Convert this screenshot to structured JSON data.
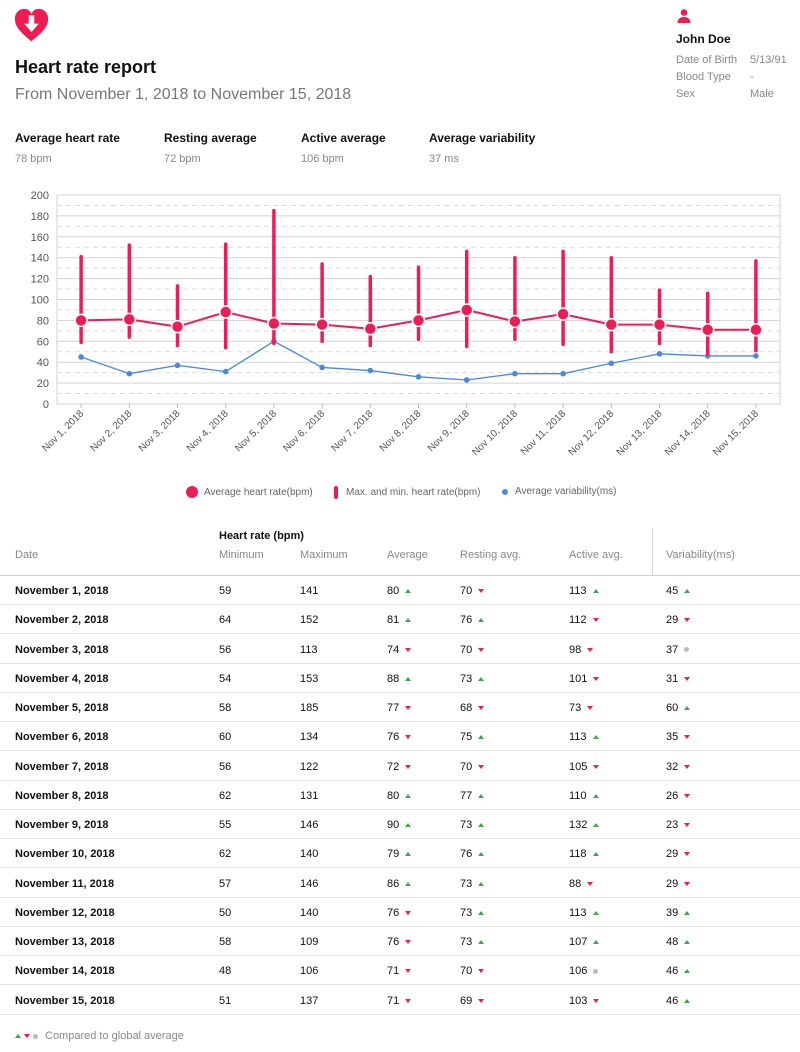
{
  "header": {
    "title": "Heart rate report",
    "range": "From November 1, 2018 to November 15, 2018",
    "logo_icon": "heart-download-icon",
    "accent_color": "#ee1c55"
  },
  "profile": {
    "icon": "person-icon",
    "name": "John Doe",
    "fields": [
      {
        "label": "Date of Birth",
        "value": "5/13/91"
      },
      {
        "label": "Blood Type",
        "value": "-"
      },
      {
        "label": "Sex",
        "value": "Male"
      }
    ]
  },
  "summary": [
    {
      "label": "Average heart rate",
      "value": "78 bpm"
    },
    {
      "label": "Resting average",
      "value": "72 bpm"
    },
    {
      "label": "Active average",
      "value": "106 bpm"
    },
    {
      "label": "Average variability",
      "value": "37 ms"
    }
  ],
  "chart_data": {
    "type": "line",
    "categories": [
      "Nov 1, 2018",
      "Nov 2, 2018",
      "Nov 3, 2018",
      "Nov 4, 2018",
      "Nov 5, 2018",
      "Nov 6, 2018",
      "Nov 7, 2018",
      "Nov 8, 2018",
      "Nov 9, 2018",
      "Nov 10, 2018",
      "Nov 11, 2018",
      "Nov 12, 2018",
      "Nov 13, 2018",
      "Nov 14, 2018",
      "Nov 15, 2018"
    ],
    "yticks": [
      "0",
      "20",
      "40",
      "60",
      "80",
      "100",
      "120",
      "140",
      "160",
      "180",
      "200"
    ],
    "ylim": [
      0,
      200
    ],
    "grid": true,
    "legend_position": "bottom",
    "series": [
      {
        "name": "Average heart rate(bpm)",
        "kind": "line-with-markers",
        "color": "#ee1c55",
        "values": [
          80,
          81,
          74,
          88,
          77,
          76,
          72,
          80,
          90,
          79,
          86,
          76,
          76,
          71,
          71
        ]
      },
      {
        "name": "Max. and min. heart rate(bpm)",
        "kind": "range-bar",
        "color": "#ee1c55",
        "min": [
          59,
          64,
          56,
          54,
          58,
          60,
          56,
          62,
          55,
          62,
          57,
          50,
          58,
          48,
          51
        ],
        "max": [
          141,
          152,
          113,
          153,
          185,
          134,
          122,
          131,
          146,
          140,
          146,
          140,
          109,
          106,
          137
        ]
      },
      {
        "name": "Average variability(ms)",
        "kind": "line-with-small-markers",
        "color": "#4a8ad8",
        "values": [
          45,
          29,
          37,
          31,
          60,
          35,
          32,
          26,
          23,
          29,
          29,
          39,
          48,
          46,
          46
        ]
      }
    ]
  },
  "table": {
    "group_label": "Heart rate (bpm)",
    "headers": {
      "date": "Date",
      "min": "Minimum",
      "max": "Maximum",
      "avg": "Average",
      "rest": "Resting avg.",
      "active": "Active avg.",
      "var": "Variability(ms)"
    },
    "rows": [
      {
        "date": "November 1, 2018",
        "min": "59",
        "max": "141",
        "avg": "80",
        "avg_t": "up",
        "rest": "70",
        "rest_t": "down",
        "active": "113",
        "active_t": "up",
        "var": "45",
        "var_t": "up"
      },
      {
        "date": "November 2, 2018",
        "min": "64",
        "max": "152",
        "avg": "81",
        "avg_t": "up",
        "rest": "76",
        "rest_t": "up",
        "active": "112",
        "active_t": "down",
        "var": "29",
        "var_t": "down"
      },
      {
        "date": "November 3, 2018",
        "min": "56",
        "max": "113",
        "avg": "74",
        "avg_t": "down",
        "rest": "70",
        "rest_t": "down",
        "active": "98",
        "active_t": "down",
        "var": "37",
        "var_t": "same"
      },
      {
        "date": "November 4, 2018",
        "min": "54",
        "max": "153",
        "avg": "88",
        "avg_t": "up",
        "rest": "73",
        "rest_t": "up",
        "active": "101",
        "active_t": "down",
        "var": "31",
        "var_t": "down"
      },
      {
        "date": "November 5, 2018",
        "min": "58",
        "max": "185",
        "avg": "77",
        "avg_t": "down",
        "rest": "68",
        "rest_t": "down",
        "active": "73",
        "active_t": "down",
        "var": "60",
        "var_t": "up"
      },
      {
        "date": "November 6, 2018",
        "min": "60",
        "max": "134",
        "avg": "76",
        "avg_t": "down",
        "rest": "75",
        "rest_t": "up",
        "active": "113",
        "active_t": "up",
        "var": "35",
        "var_t": "down"
      },
      {
        "date": "November 7, 2018",
        "min": "56",
        "max": "122",
        "avg": "72",
        "avg_t": "down",
        "rest": "70",
        "rest_t": "down",
        "active": "105",
        "active_t": "down",
        "var": "32",
        "var_t": "down"
      },
      {
        "date": "November 8, 2018",
        "min": "62",
        "max": "131",
        "avg": "80",
        "avg_t": "up",
        "rest": "77",
        "rest_t": "up",
        "active": "110",
        "active_t": "up",
        "var": "26",
        "var_t": "down"
      },
      {
        "date": "November 9, 2018",
        "min": "55",
        "max": "146",
        "avg": "90",
        "avg_t": "up",
        "rest": "73",
        "rest_t": "up",
        "active": "132",
        "active_t": "up",
        "var": "23",
        "var_t": "down"
      },
      {
        "date": "November 10, 2018",
        "min": "62",
        "max": "140",
        "avg": "79",
        "avg_t": "up",
        "rest": "76",
        "rest_t": "up",
        "active": "118",
        "active_t": "up",
        "var": "29",
        "var_t": "down"
      },
      {
        "date": "November 11, 2018",
        "min": "57",
        "max": "146",
        "avg": "86",
        "avg_t": "up",
        "rest": "73",
        "rest_t": "up",
        "active": "88",
        "active_t": "down",
        "var": "29",
        "var_t": "down"
      },
      {
        "date": "November 12, 2018",
        "min": "50",
        "max": "140",
        "avg": "76",
        "avg_t": "down",
        "rest": "73",
        "rest_t": "up",
        "active": "113",
        "active_t": "up",
        "var": "39",
        "var_t": "up"
      },
      {
        "date": "November 13, 2018",
        "min": "58",
        "max": "109",
        "avg": "76",
        "avg_t": "down",
        "rest": "73",
        "rest_t": "up",
        "active": "107",
        "active_t": "up",
        "var": "48",
        "var_t": "up"
      },
      {
        "date": "November 14, 2018",
        "min": "48",
        "max": "106",
        "avg": "71",
        "avg_t": "down",
        "rest": "70",
        "rest_t": "down",
        "active": "106",
        "active_t": "same",
        "var": "46",
        "var_t": "up"
      },
      {
        "date": "November 15, 2018",
        "min": "51",
        "max": "137",
        "avg": "71",
        "avg_t": "down",
        "rest": "69",
        "rest_t": "down",
        "active": "103",
        "active_t": "down",
        "var": "46",
        "var_t": "up"
      }
    ]
  },
  "footnote": {
    "text": "Compared to global average",
    "up_color": "#3da847",
    "down_color": "#ee1c55",
    "same_color": "#bbbbbb"
  }
}
